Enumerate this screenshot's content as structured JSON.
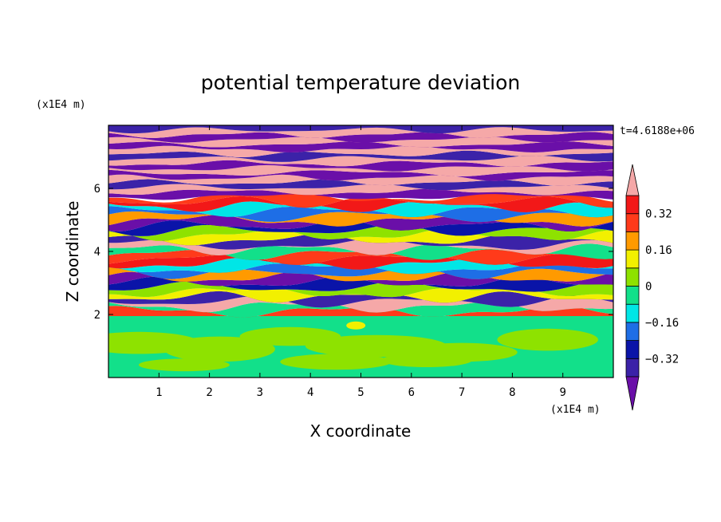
{
  "chart_data": {
    "type": "heatmap",
    "title": "potential temperature deviation",
    "xlabel": "X coordinate",
    "ylabel": "Z coordinate",
    "x_unit": "(x1E4 m)",
    "y_unit": "(x1E4 m)",
    "time_label": "t=4.6188e+06",
    "xlim": [
      0,
      10
    ],
    "ylim": [
      0,
      8
    ],
    "x_ticks": [
      1,
      2,
      3,
      4,
      5,
      6,
      7,
      8,
      9
    ],
    "y_ticks": [
      2,
      4,
      6
    ],
    "colorbar": {
      "levels": [
        -0.4,
        -0.32,
        -0.24,
        -0.16,
        -0.08,
        0,
        0.08,
        0.16,
        0.24,
        0.32,
        0.4
      ],
      "tick_labels": [
        "0.32",
        "0.16",
        "0",
        "−0.16",
        "−0.32"
      ],
      "tick_values": [
        0.32,
        0.16,
        0,
        -0.16,
        -0.32
      ],
      "colors": [
        "#6a0fa8",
        "#3b22a8",
        "#0a14a8",
        "#1e6ee6",
        "#00e6e6",
        "#12e08a",
        "#8ee200",
        "#f2f000",
        "#ff9a00",
        "#ff3a1a",
        "#f21818",
        "#f5a8a8"
      ]
    },
    "bands_description_z_ranges": [
      {
        "z": [
          0,
          1.95
        ],
        "class": "lower-green-field"
      },
      {
        "z": [
          1.95,
          5.8
        ],
        "class": "turbulent-mixed"
      },
      {
        "z": [
          5.8,
          8
        ],
        "class": "layered-purple-pink"
      }
    ]
  }
}
